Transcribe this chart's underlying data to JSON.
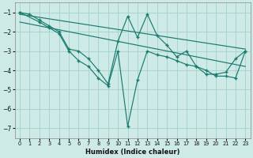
{
  "bg_color": "#ceeae6",
  "grid_color": "#a8d4d0",
  "line_color": "#1a7a6e",
  "xlabel": "Humidex (Indice chaleur)",
  "xlim": [
    -0.5,
    23.5
  ],
  "ylim": [
    -7.5,
    -0.5
  ],
  "yticks": [
    -7,
    -6,
    -5,
    -4,
    -3,
    -2,
    -1
  ],
  "xticks": [
    0,
    1,
    2,
    3,
    4,
    5,
    6,
    7,
    8,
    9,
    10,
    11,
    12,
    13,
    14,
    15,
    16,
    17,
    18,
    19,
    20,
    21,
    22,
    23
  ],
  "series1_x": [
    0,
    1,
    2,
    3,
    4,
    5,
    6,
    7,
    8,
    9,
    10,
    11,
    12,
    13,
    14,
    15,
    16,
    17,
    18,
    19,
    20,
    21,
    22,
    23
  ],
  "series1_y": [
    -1.0,
    -1.1,
    -1.4,
    -1.7,
    -2.0,
    -2.9,
    -3.0,
    -3.4,
    -4.0,
    -4.7,
    -2.5,
    -1.2,
    -2.3,
    -1.1,
    -2.2,
    -2.7,
    -3.3,
    -3.0,
    -3.8,
    -4.2,
    -4.2,
    -4.1,
    -3.4,
    -3.0
  ],
  "series2_x": [
    0,
    2,
    3,
    4,
    5,
    6,
    7,
    8,
    9,
    10,
    11,
    12,
    13,
    14,
    15,
    16,
    17,
    18,
    19,
    20,
    21,
    22,
    23
  ],
  "series2_y": [
    -1.0,
    -1.5,
    -1.8,
    -2.1,
    -3.0,
    -3.5,
    -3.8,
    -4.4,
    -4.8,
    -3.0,
    -6.9,
    -4.5,
    -3.0,
    -3.2,
    -3.3,
    -3.5,
    -3.7,
    -3.8,
    -4.0,
    -4.3,
    -4.3,
    -4.4,
    -3.0
  ],
  "line1_x": [
    0,
    23
  ],
  "line1_y": [
    -1.1,
    -2.9
  ],
  "line2_x": [
    0,
    23
  ],
  "line2_y": [
    -1.5,
    -3.8
  ]
}
